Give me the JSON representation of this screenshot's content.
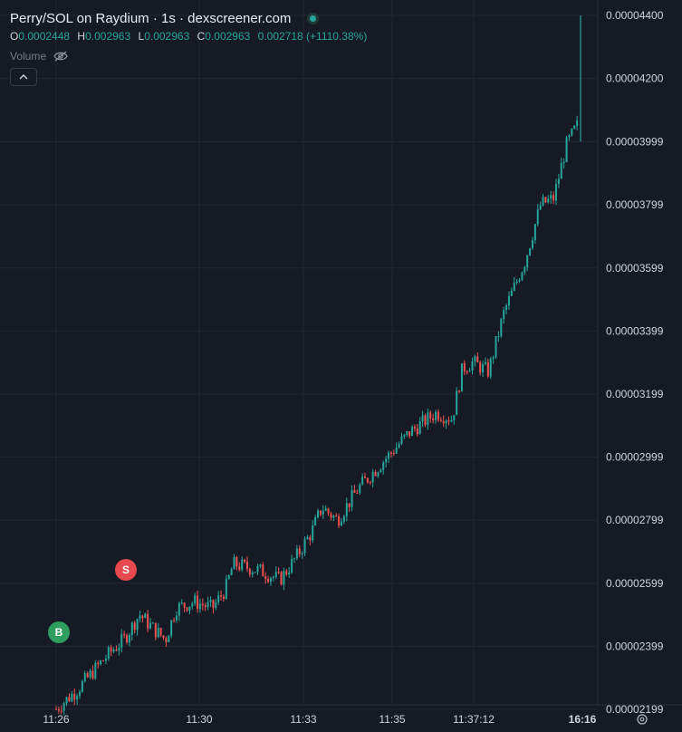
{
  "header": {
    "title": "Perry/SOL on Raydium · 1s · dexscreener.com",
    "ohlc": [
      {
        "key": "O",
        "value": "0.0002448"
      },
      {
        "key": "H",
        "value": "0.002963"
      },
      {
        "key": "L",
        "value": "0.002963"
      },
      {
        "key": "C",
        "value": "0.002963"
      }
    ],
    "change": "0.002718 (+1110.38%)",
    "volume_label": "Volume",
    "collapse_icon": "chevron-up-icon",
    "visibility_icon": "eye-off-icon"
  },
  "colors": {
    "background": "#161a25",
    "up": "#26a69a",
    "down": "#ef5350",
    "grid": "#232632",
    "buy_marker": "#2e9e5e",
    "sell_marker": "#e5484d"
  },
  "chart_data": {
    "type": "candlestick",
    "y_ticks": [
      "0.00004400",
      "0.00004200",
      "0.00003999",
      "0.00003799",
      "0.00003599",
      "0.00003399",
      "0.00003199",
      "0.00002999",
      "0.00002799",
      "0.00002599",
      "0.00002399",
      "0.00002199"
    ],
    "ylim": [
      2.16e-05,
      4.41e-05
    ],
    "x_ticks": [
      "11:26",
      "11:30",
      "11:33",
      "11:35",
      "11:37:12",
      "16:16"
    ],
    "price_path": [
      {
        "t": 0,
        "p": 2.2e-05
      },
      {
        "t": 0.04,
        "p": 2.26e-05
      },
      {
        "t": 0.09,
        "p": 2.355e-05
      },
      {
        "t": 0.11,
        "p": 2.39e-05
      },
      {
        "t": 0.13,
        "p": 2.42e-05
      },
      {
        "t": 0.16,
        "p": 2.5e-05
      },
      {
        "t": 0.19,
        "p": 2.45e-05
      },
      {
        "t": 0.21,
        "p": 2.42e-05
      },
      {
        "t": 0.23,
        "p": 2.52e-05
      },
      {
        "t": 0.265,
        "p": 2.54e-05
      },
      {
        "t": 0.3,
        "p": 2.52e-05
      },
      {
        "t": 0.325,
        "p": 2.58e-05
      },
      {
        "t": 0.34,
        "p": 2.66e-05
      },
      {
        "t": 0.39,
        "p": 2.64e-05
      },
      {
        "t": 0.43,
        "p": 2.61e-05
      },
      {
        "t": 0.46,
        "p": 2.68e-05
      },
      {
        "t": 0.49,
        "p": 2.76e-05
      },
      {
        "t": 0.51,
        "p": 2.84e-05
      },
      {
        "t": 0.54,
        "p": 2.8e-05
      },
      {
        "t": 0.58,
        "p": 2.9e-05
      },
      {
        "t": 0.63,
        "p": 2.99e-05
      },
      {
        "t": 0.68,
        "p": 3.08e-05
      },
      {
        "t": 0.73,
        "p": 3.14e-05
      },
      {
        "t": 0.76,
        "p": 3.12e-05
      },
      {
        "t": 0.78,
        "p": 3.28e-05
      },
      {
        "t": 0.8,
        "p": 3.3e-05
      },
      {
        "t": 0.83,
        "p": 3.27e-05
      },
      {
        "t": 0.86,
        "p": 3.46e-05
      },
      {
        "t": 0.9,
        "p": 3.62e-05
      },
      {
        "t": 0.93,
        "p": 3.8e-05
      },
      {
        "t": 0.955,
        "p": 3.82e-05
      },
      {
        "t": 0.98,
        "p": 3.99e-05
      },
      {
        "t": 1.0,
        "p": 4.05e-05
      }
    ],
    "final_spike": {
      "open": 4e-05,
      "close": 4.4e-05
    },
    "markers": [
      {
        "label": "B",
        "type": "buy"
      },
      {
        "label": "S",
        "type": "sell"
      }
    ]
  }
}
